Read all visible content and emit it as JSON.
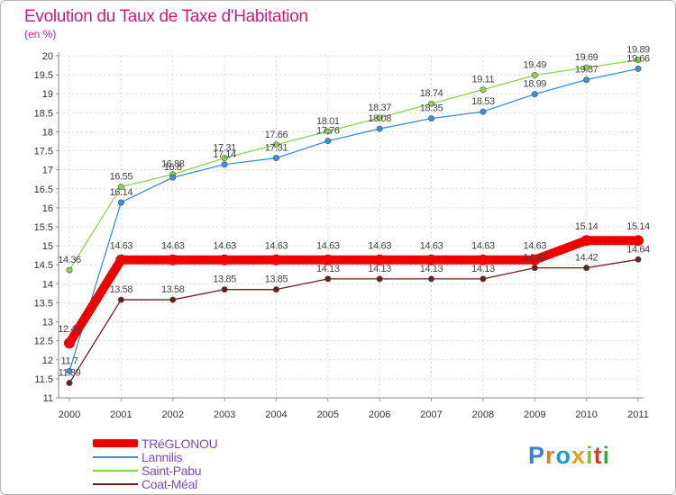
{
  "title": "Evolution du Taux de Taxe d'Habitation",
  "subtitle": "(en %)",
  "brand": {
    "letters": [
      "P",
      "r",
      "o",
      "x",
      "i",
      "t",
      "i"
    ],
    "colors": [
      "#3a7fd0",
      "#e77b24",
      "#1c9bd5",
      "#e6a11b",
      "#7fbf3a",
      "#e0352c",
      "#3aa84a"
    ]
  },
  "chart_data": {
    "type": "line",
    "title": "Evolution du Taux de Taxe d'Habitation",
    "ylabel": "(en %)",
    "xlabel": "",
    "x": [
      "2000",
      "2001",
      "2002",
      "2003",
      "2004",
      "2005",
      "2006",
      "2007",
      "2008",
      "2009",
      "2010",
      "2011"
    ],
    "ylim": [
      11,
      20
    ],
    "yticks": [
      "11",
      "11.5",
      "12",
      "12.5",
      "13",
      "13.5",
      "14",
      "14.5",
      "15",
      "15.5",
      "16",
      "16.5",
      "17",
      "17.5",
      "18",
      "18.5",
      "19",
      "19.5",
      "20"
    ],
    "grid": true,
    "legend_position": "bottom-left",
    "series": [
      {
        "name": "Saint-Pabu",
        "color": "#8fd14f",
        "values": [
          14.36,
          16.55,
          16.88,
          17.31,
          17.66,
          18.01,
          18.37,
          18.74,
          19.11,
          19.49,
          19.69,
          19.89
        ],
        "labels": [
          "14.36",
          "16.55",
          "16.88",
          "17.31",
          "17.66",
          "18.01",
          "18.37",
          "18.74",
          "19.11",
          "19.49",
          "19.69",
          "19.89"
        ]
      },
      {
        "name": "Lannilis",
        "color": "#3b8fd6",
        "values": [
          11.7,
          16.14,
          16.8,
          17.14,
          17.31,
          17.76,
          18.08,
          18.35,
          18.53,
          18.99,
          19.37,
          19.66
        ],
        "labels": [
          "11.7",
          "16.14",
          "16.8",
          "17.14",
          "17.31",
          "17.76",
          "18.08",
          "18.35",
          "18.53",
          "18.99",
          "19.37",
          "19.66"
        ]
      },
      {
        "name": "Coat-Méal",
        "color": "#6b1f1f",
        "values": [
          11.39,
          13.58,
          13.58,
          13.85,
          13.85,
          14.13,
          14.13,
          14.13,
          14.13,
          14.42,
          14.42,
          14.64
        ],
        "labels": [
          "11.39",
          "13.58",
          "13.58",
          "13.85",
          "13.85",
          "14.13",
          "14.13",
          "14.13",
          "14.13",
          "14.42",
          "14.42",
          "14.64"
        ]
      },
      {
        "name": "TRéGLONOU",
        "color": "#ee0000",
        "values": [
          12.44,
          14.63,
          14.63,
          14.63,
          14.63,
          14.63,
          14.63,
          14.63,
          14.63,
          14.63,
          15.14,
          15.14
        ],
        "labels": [
          "12.44",
          "14.63",
          "14.63",
          "14.63",
          "14.63",
          "14.63",
          "14.63",
          "14.63",
          "14.63",
          "14.63",
          "15.14",
          "15.14"
        ]
      }
    ],
    "legend": [
      {
        "name": "TRéGLONOU",
        "color": "#ee0000",
        "weight": "thick"
      },
      {
        "name": "Lannilis",
        "color": "#3b8fd6",
        "weight": "thin"
      },
      {
        "name": "Saint-Pabu",
        "color": "#8fd14f",
        "weight": "thin"
      },
      {
        "name": "Coat-Méal",
        "color": "#6b1f1f",
        "weight": "thin"
      }
    ]
  }
}
